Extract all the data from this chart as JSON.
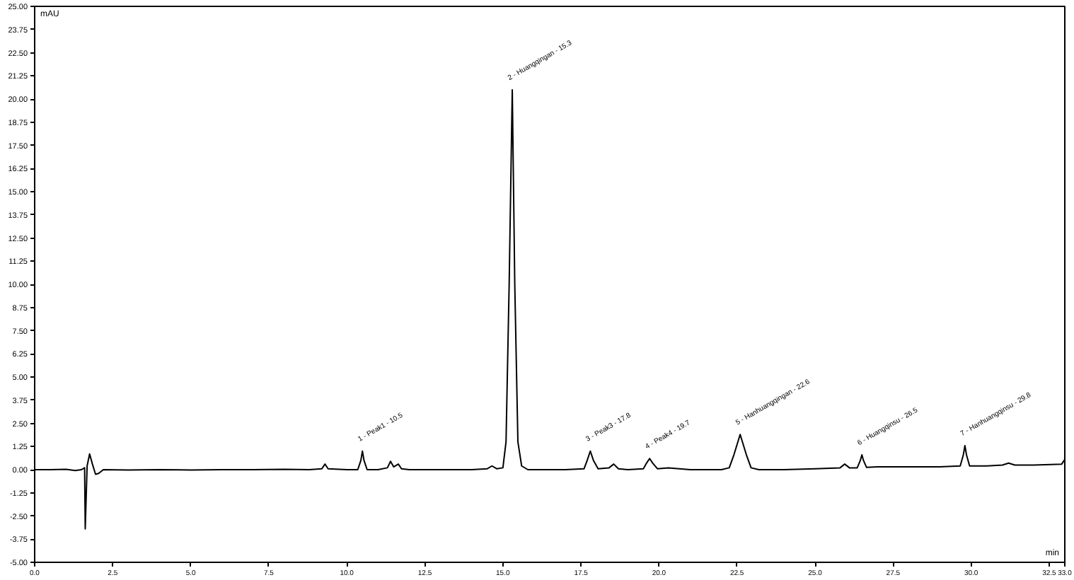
{
  "chart_data": {
    "type": "line",
    "xlabel": "min",
    "ylabel": "mAU",
    "xlim": [
      0,
      33
    ],
    "ylim": [
      -5,
      25
    ],
    "xticks": [
      {
        "value": 0,
        "label": "0.0"
      },
      {
        "value": 2.5,
        "label": "2.5"
      },
      {
        "value": 5,
        "label": "5.0"
      },
      {
        "value": 7.5,
        "label": "7.5"
      },
      {
        "value": 10,
        "label": "10.0"
      },
      {
        "value": 12.5,
        "label": "12.5"
      },
      {
        "value": 15,
        "label": "15.0"
      },
      {
        "value": 17.5,
        "label": "17.5"
      },
      {
        "value": 20,
        "label": "20.0"
      },
      {
        "value": 22.5,
        "label": "22.5"
      },
      {
        "value": 25,
        "label": "25.0"
      },
      {
        "value": 27.5,
        "label": "27.5"
      },
      {
        "value": 30,
        "label": "30.0"
      },
      {
        "value": 32.5,
        "label": "32.5"
      },
      {
        "value": 33,
        "label": "33.0"
      }
    ],
    "yticks": [
      {
        "value": -5,
        "label": "-5.00"
      },
      {
        "value": -3.75,
        "label": "-3.75"
      },
      {
        "value": -2.5,
        "label": "-2.50"
      },
      {
        "value": -1.25,
        "label": "-1.25"
      },
      {
        "value": 0,
        "label": "0.00"
      },
      {
        "value": 1.25,
        "label": "1.25"
      },
      {
        "value": 2.5,
        "label": "2.50"
      },
      {
        "value": 3.75,
        "label": "3.75"
      },
      {
        "value": 5,
        "label": "5.00"
      },
      {
        "value": 6.25,
        "label": "6.25"
      },
      {
        "value": 7.5,
        "label": "7.50"
      },
      {
        "value": 8.75,
        "label": "8.75"
      },
      {
        "value": 10,
        "label": "10.00"
      },
      {
        "value": 11.25,
        "label": "11.25"
      },
      {
        "value": 12.5,
        "label": "12.50"
      },
      {
        "value": 13.75,
        "label": "13.75"
      },
      {
        "value": 15,
        "label": "15.00"
      },
      {
        "value": 16.25,
        "label": "16.25"
      },
      {
        "value": 17.5,
        "label": "17.50"
      },
      {
        "value": 18.75,
        "label": "18.75"
      },
      {
        "value": 20,
        "label": "20.00"
      },
      {
        "value": 21.25,
        "label": "21.25"
      },
      {
        "value": 22.5,
        "label": "22.50"
      },
      {
        "value": 23.75,
        "label": "23.75"
      },
      {
        "value": 25,
        "label": "25.00"
      }
    ],
    "series": [
      {
        "color": "#000000",
        "x": [
          0.0,
          0.5,
          1.0,
          1.3,
          1.5,
          1.6,
          1.62,
          1.68,
          1.76,
          1.85,
          1.95,
          2.05,
          2.2,
          3.0,
          4.0,
          5.0,
          6.0,
          7.0,
          8.0,
          8.8,
          9.2,
          9.3,
          9.4,
          10.0,
          10.35,
          10.45,
          10.5,
          10.55,
          10.65,
          11.0,
          11.3,
          11.4,
          11.5,
          11.65,
          11.75,
          12.0,
          13.0,
          14.0,
          14.5,
          14.65,
          14.8,
          15.0,
          15.1,
          15.2,
          15.3,
          15.38,
          15.48,
          15.6,
          15.8,
          16.5,
          17.0,
          17.6,
          17.7,
          17.8,
          17.9,
          18.05,
          18.4,
          18.55,
          18.7,
          19.0,
          19.5,
          19.6,
          19.7,
          19.8,
          19.95,
          20.3,
          21.0,
          22.0,
          22.25,
          22.4,
          22.6,
          22.8,
          22.95,
          23.2,
          24.0,
          25.0,
          25.8,
          25.95,
          26.1,
          26.35,
          26.45,
          26.5,
          26.55,
          26.65,
          27.0,
          28.0,
          29.0,
          29.65,
          29.75,
          29.8,
          29.85,
          29.95,
          30.5,
          31.0,
          31.2,
          31.4,
          32.0,
          32.9,
          33.0
        ],
        "values": [
          0.0,
          0.0,
          0.02,
          -0.05,
          0.0,
          0.1,
          -3.2,
          0.2,
          0.85,
          0.3,
          -0.25,
          -0.2,
          0.0,
          -0.02,
          0.0,
          -0.02,
          0.0,
          0.0,
          0.02,
          0.0,
          0.05,
          0.3,
          0.05,
          0.0,
          0.0,
          0.5,
          1.0,
          0.5,
          0.0,
          0.0,
          0.1,
          0.45,
          0.15,
          0.3,
          0.05,
          0.0,
          0.0,
          0.0,
          0.05,
          0.2,
          0.05,
          0.1,
          1.5,
          10.0,
          20.5,
          10.0,
          1.5,
          0.2,
          0.0,
          0.0,
          0.0,
          0.05,
          0.5,
          1.0,
          0.5,
          0.05,
          0.1,
          0.3,
          0.05,
          0.0,
          0.05,
          0.35,
          0.6,
          0.35,
          0.05,
          0.1,
          0.0,
          0.0,
          0.1,
          0.8,
          1.9,
          0.8,
          0.1,
          0.0,
          0.0,
          0.05,
          0.1,
          0.3,
          0.1,
          0.1,
          0.5,
          0.8,
          0.5,
          0.12,
          0.15,
          0.15,
          0.15,
          0.2,
          0.8,
          1.3,
          0.8,
          0.2,
          0.2,
          0.25,
          0.35,
          0.25,
          0.25,
          0.3,
          0.55
        ]
      }
    ],
    "annotations": [
      {
        "text": "1 - Peak1 - 10.5",
        "x": 10.5,
        "y": 1.0
      },
      {
        "text": "2 - Huangqingan - 15.3",
        "x": 15.3,
        "y": 20.5
      },
      {
        "text": "3 - Peak3 - 17.8",
        "x": 17.8,
        "y": 1.0
      },
      {
        "text": "4 - Peak4 - 19.7",
        "x": 19.7,
        "y": 0.6
      },
      {
        "text": "5 - Hanhuangqingan - 22.6",
        "x": 22.6,
        "y": 1.9
      },
      {
        "text": "6 - Huangqinsu - 26.5",
        "x": 26.5,
        "y": 0.8
      },
      {
        "text": "7 - Hanhuangqinsu - 29.8",
        "x": 29.8,
        "y": 1.3
      }
    ]
  }
}
